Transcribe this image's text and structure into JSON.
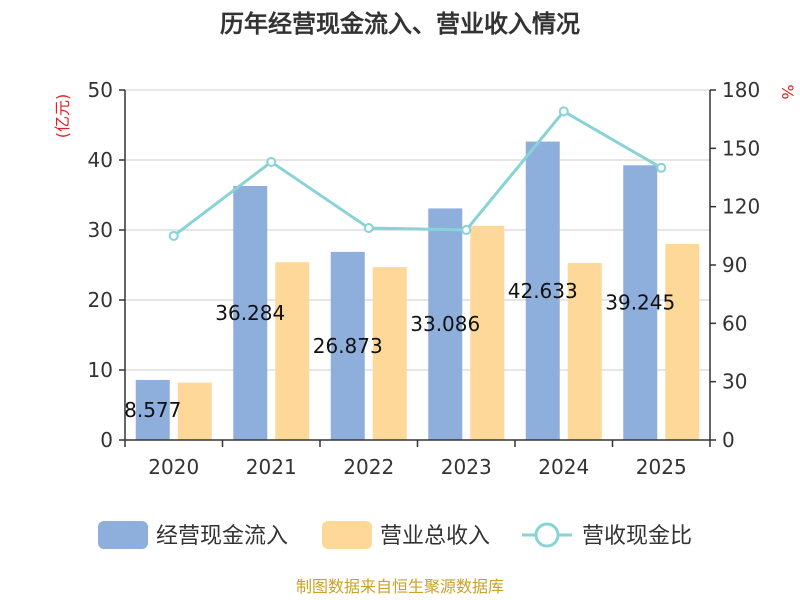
{
  "title": "历年经营现金流入、营业收入情况",
  "left_unit": "(亿元)",
  "right_unit": "%",
  "source": "制图数据来自恒生聚源数据库",
  "colors": {
    "cash_inflow": "#8eaedb",
    "revenue": "#fdd899",
    "ratio": "#87d3d6",
    "axis": "#333333",
    "grid": "#cccccc",
    "unit": "#e02020",
    "source": "#c9a227"
  },
  "chart_data": {
    "type": "bar",
    "categories": [
      "2020",
      "2021",
      "2022",
      "2023",
      "2024",
      "2025"
    ],
    "series": [
      {
        "name": "经营现金流入",
        "type": "bar",
        "axis": "left",
        "values": [
          8.577,
          36.284,
          26.873,
          33.086,
          42.633,
          39.245
        ],
        "labels": [
          "8.577",
          "36.284",
          "26.873",
          "33.086",
          "42.633",
          "39.245"
        ]
      },
      {
        "name": "营业总收入",
        "type": "bar",
        "axis": "left",
        "values": [
          8.2,
          25.4,
          24.7,
          30.6,
          25.3,
          28.0
        ]
      },
      {
        "name": "营收现金比",
        "type": "line",
        "axis": "right",
        "values": [
          105,
          143,
          109,
          108,
          169,
          140
        ]
      }
    ],
    "y_left": {
      "min": 0,
      "max": 50,
      "ticks": [
        "0",
        "10",
        "20",
        "30",
        "40",
        "50"
      ]
    },
    "y_right": {
      "min": 0,
      "max": 180,
      "ticks": [
        "0",
        "30",
        "60",
        "90",
        "120",
        "150",
        "180"
      ]
    },
    "grid": true,
    "legend": "bottom"
  }
}
